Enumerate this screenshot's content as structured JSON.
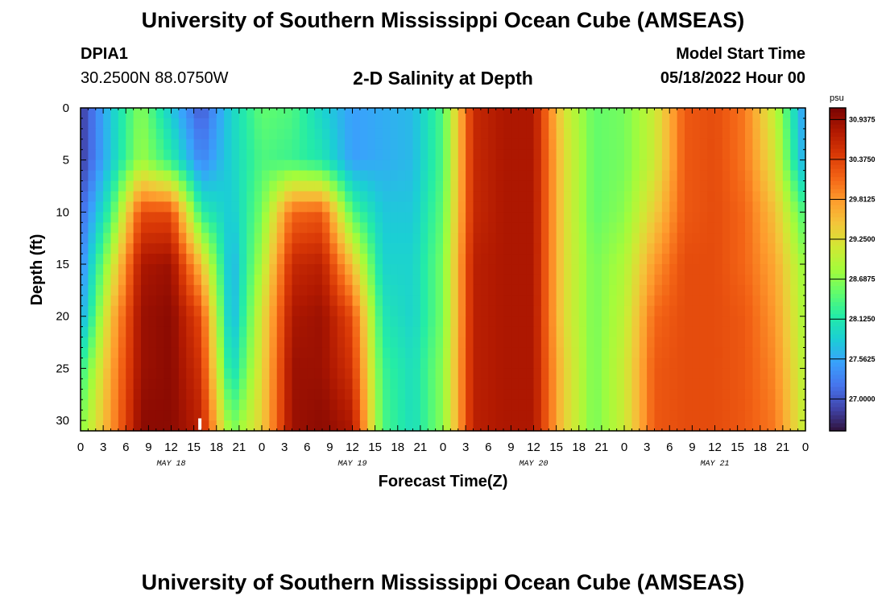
{
  "header": {
    "title": "University of Southern Mississippi Ocean Cube (AMSEAS)",
    "station_id": "DPIA1",
    "coords": "30.2500N  88.0750W",
    "subtitle": "2-D Salinity at Depth",
    "start_label": "Model Start Time",
    "start_value": "05/18/2022 Hour 00"
  },
  "footer": {
    "title": "University of Southern Mississippi Ocean Cube (AMSEAS)"
  },
  "colors": {
    "background": "#ffffff",
    "palette": [
      "#30123b",
      "#4145ab",
      "#4675ed",
      "#39a2fc",
      "#1bcfd4",
      "#24eca6",
      "#61fc6c",
      "#a4fc3b",
      "#d1e834",
      "#f3c63a",
      "#fe9b2d",
      "#f36315",
      "#d93806",
      "#b11901",
      "#7a0403"
    ]
  },
  "chart_data": {
    "type": "heatmap",
    "title": "2-D Salinity at Depth",
    "xlabel": "Forecast Time(Z)",
    "ylabel": "Depth (ft)",
    "x_unit": "hours since 05/18/2022 00Z",
    "xlim": [
      0,
      96
    ],
    "ylim": [
      0,
      31
    ],
    "y_inverted": true,
    "x_tick_values": [
      0,
      3,
      6,
      9,
      12,
      15,
      18,
      21,
      24,
      27,
      30,
      33,
      36,
      39,
      42,
      45,
      48,
      51,
      54,
      57,
      60,
      63,
      66,
      69,
      72,
      75,
      78,
      81,
      84,
      87,
      90,
      93,
      96
    ],
    "x_tick_labels": [
      "0",
      "3",
      "6",
      "9",
      "12",
      "15",
      "18",
      "21",
      "0",
      "3",
      "6",
      "9",
      "12",
      "15",
      "18",
      "21",
      "0",
      "3",
      "6",
      "9",
      "12",
      "15",
      "18",
      "21",
      "0",
      "3",
      "6",
      "9",
      "12",
      "15",
      "18",
      "21",
      "0"
    ],
    "day_labels": [
      {
        "hour": 12,
        "label": "MAY 18"
      },
      {
        "hour": 36,
        "label": "MAY 19"
      },
      {
        "hour": 60,
        "label": "MAY 20"
      },
      {
        "hour": 84,
        "label": "MAY 21"
      }
    ],
    "y_tick_values": [
      0,
      5,
      10,
      15,
      20,
      25,
      30
    ],
    "y_tick_labels": [
      "0",
      "5",
      "10",
      "15",
      "20",
      "25",
      "30"
    ],
    "colorbar": {
      "unit": "psu",
      "min": 26.55,
      "max": 31.1,
      "tick_values": [
        30.9375,
        30.375,
        29.8125,
        29.25,
        28.6875,
        28.125,
        27.5625,
        27.0
      ],
      "tick_labels": [
        "30.9375",
        "30.3750",
        "29.8125",
        "29.2500",
        "28.6875",
        "28.1250",
        "27.5625",
        "27.0000"
      ]
    },
    "time_hours": [
      0,
      4,
      8,
      12,
      16,
      20,
      24,
      28,
      32,
      36,
      40,
      44,
      48,
      52,
      56,
      60,
      64,
      68,
      72,
      76,
      80,
      84,
      88,
      92,
      96
    ],
    "depths_ft": [
      0,
      5,
      10,
      15,
      20,
      25,
      31
    ],
    "salinity_psu": [
      [
        26.8,
        27.8,
        28.7,
        27.8,
        27.0,
        27.9,
        28.5,
        28.4,
        27.9,
        27.5,
        27.6,
        27.7,
        28.4,
        30.6,
        30.8,
        30.8,
        29.2,
        28.5,
        28.6,
        29.1,
        30.2,
        30.3,
        30.0,
        29.0,
        27.4
      ],
      [
        26.8,
        27.8,
        28.8,
        28.2,
        27.3,
        27.9,
        28.4,
        28.3,
        28.1,
        27.5,
        27.6,
        27.7,
        28.4,
        30.6,
        30.8,
        30.8,
        29.3,
        28.5,
        28.6,
        29.1,
        30.2,
        30.3,
        30.0,
        29.2,
        27.5
      ],
      [
        27.1,
        28.3,
        30.3,
        30.3,
        28.2,
        27.8,
        28.6,
        30.1,
        30.2,
        28.4,
        27.8,
        27.8,
        28.5,
        30.6,
        30.8,
        30.8,
        29.3,
        28.5,
        28.7,
        29.4,
        30.2,
        30.3,
        30.1,
        29.5,
        28.3
      ],
      [
        27.3,
        29.0,
        30.8,
        30.9,
        29.5,
        27.6,
        28.9,
        30.6,
        30.7,
        29.5,
        27.9,
        27.9,
        28.6,
        30.7,
        30.8,
        30.8,
        29.3,
        28.6,
        28.9,
        29.8,
        30.3,
        30.3,
        30.1,
        29.7,
        28.7
      ],
      [
        27.5,
        29.5,
        30.9,
        31.0,
        30.3,
        27.6,
        29.2,
        30.8,
        30.9,
        30.3,
        28.1,
        27.9,
        28.6,
        30.7,
        30.8,
        30.8,
        29.3,
        28.6,
        29.0,
        30.1,
        30.3,
        30.3,
        30.2,
        29.8,
        28.8
      ],
      [
        28.2,
        29.7,
        30.9,
        31.0,
        30.5,
        27.9,
        29.3,
        30.9,
        30.9,
        30.5,
        28.3,
        28.0,
        28.7,
        30.7,
        30.8,
        30.8,
        29.4,
        28.6,
        29.1,
        30.2,
        30.3,
        30.3,
        30.2,
        29.9,
        28.9
      ],
      [
        28.7,
        29.8,
        31.0,
        31.0,
        30.7,
        28.6,
        29.4,
        30.9,
        31.0,
        30.8,
        28.4,
        28.0,
        28.7,
        30.7,
        30.8,
        30.8,
        29.4,
        28.6,
        29.1,
        30.2,
        30.3,
        30.3,
        30.2,
        30.0,
        29.0
      ]
    ]
  }
}
